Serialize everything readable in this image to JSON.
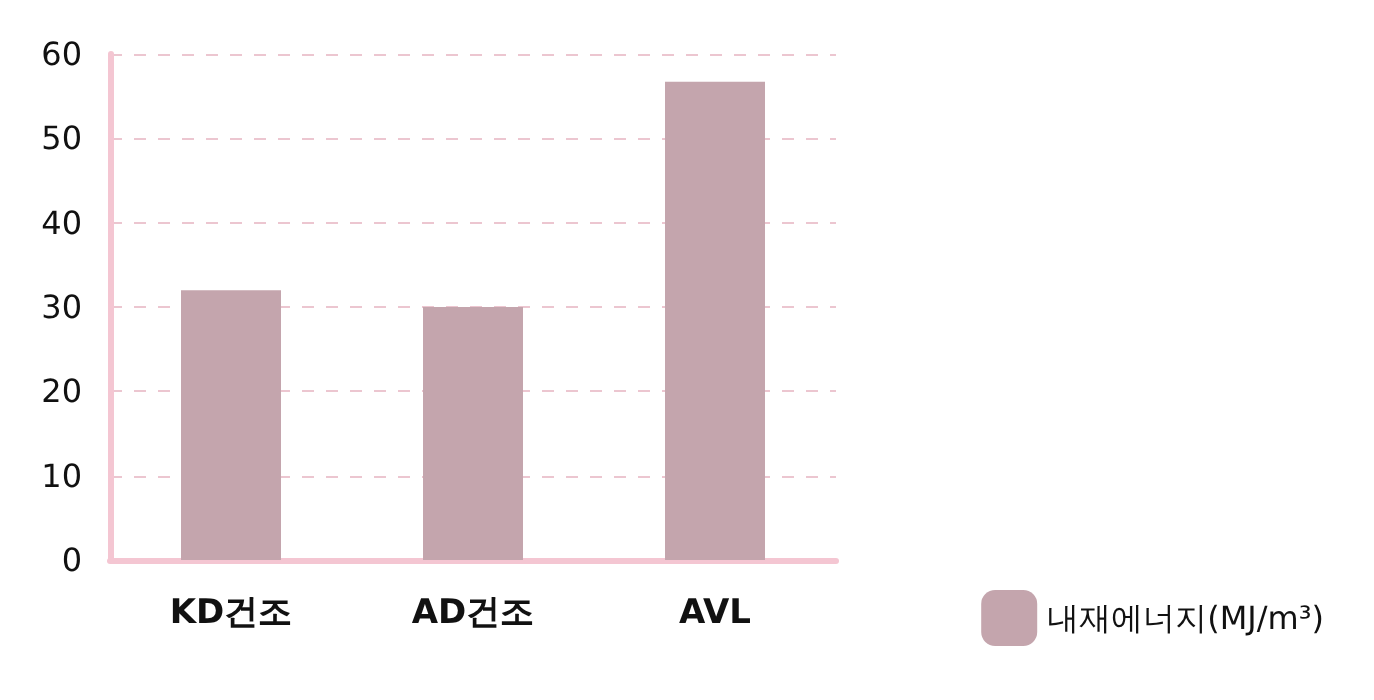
{
  "chart_data": {
    "type": "bar",
    "categories": [
      "KD건조",
      "AD건조",
      "AVL"
    ],
    "series": [
      {
        "name": "내재에너지(MJ/m³)",
        "color": "#c4a5ad",
        "values": [
          32,
          30,
          56.7
        ]
      }
    ],
    "ylim": [
      0,
      60
    ],
    "yticks": [
      0,
      10,
      20,
      30,
      40,
      50,
      60
    ],
    "grid": "y",
    "legend": "bottom right"
  }
}
